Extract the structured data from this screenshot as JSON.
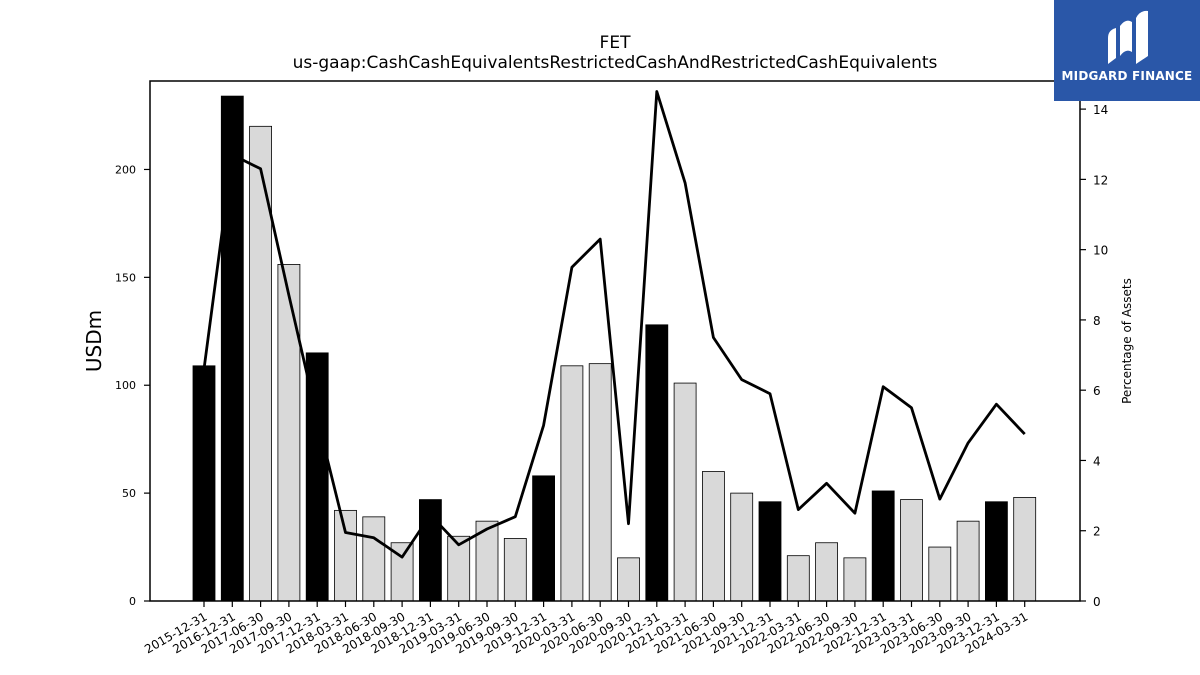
{
  "chart_data": {
    "type": "bar+line",
    "title": "FET",
    "subtitle": "us-gaap:CashCashEquivalentsRestrictedCashAndRestrictedCashEquivalents",
    "ylabel": "USDm",
    "y2label": "Percentage of Assets",
    "ylim": [
      0,
      241
    ],
    "y2lim": [
      0,
      14.8
    ],
    "yticks": [
      0,
      50,
      100,
      150,
      200
    ],
    "y2ticks": [
      0,
      2,
      4,
      6,
      8,
      10,
      12,
      14
    ],
    "categories": [
      "2015-12-31",
      "2016-12-31",
      "2017-06-30",
      "2017-09-30",
      "2017-12-31",
      "2018-03-31",
      "2018-06-30",
      "2018-09-30",
      "2018-12-31",
      "2019-03-31",
      "2019-06-30",
      "2019-09-30",
      "2019-12-31",
      "2020-03-31",
      "2020-06-30",
      "2020-09-30",
      "2020-12-31",
      "2021-03-31",
      "2021-06-30",
      "2021-09-30",
      "2021-12-31",
      "2022-03-31",
      "2022-06-30",
      "2022-09-30",
      "2022-12-31",
      "2023-03-31",
      "2023-06-30",
      "2023-09-30",
      "2023-12-31",
      "2024-03-31"
    ],
    "bar_values": [
      109,
      234,
      220,
      156,
      115,
      42,
      39,
      27,
      47,
      30,
      37,
      29,
      58,
      109,
      110,
      20,
      128,
      101,
      60,
      50,
      46,
      21,
      27,
      20,
      51,
      47,
      25,
      37,
      46,
      48
    ],
    "bar_is_year_end": [
      true,
      true,
      false,
      false,
      true,
      false,
      false,
      false,
      true,
      false,
      false,
      false,
      true,
      false,
      false,
      false,
      true,
      false,
      false,
      false,
      true,
      false,
      false,
      false,
      true,
      false,
      false,
      false,
      true,
      false
    ],
    "line_values": [
      6.6,
      12.7,
      12.3,
      8.7,
      5.2,
      1.95,
      1.8,
      1.25,
      2.45,
      1.6,
      2.05,
      2.4,
      5.0,
      9.5,
      10.3,
      2.2,
      14.5,
      11.9,
      7.5,
      6.3,
      5.9,
      2.6,
      3.35,
      2.5,
      6.1,
      5.5,
      2.9,
      4.5,
      5.6,
      4.75
    ],
    "colors": {
      "year_end_bar": "#000000",
      "quarter_bar": "#d9d9d9",
      "line": "#000000"
    }
  },
  "logo": {
    "text": "MIDGARD FINANCE",
    "background": "#2a57a8"
  }
}
